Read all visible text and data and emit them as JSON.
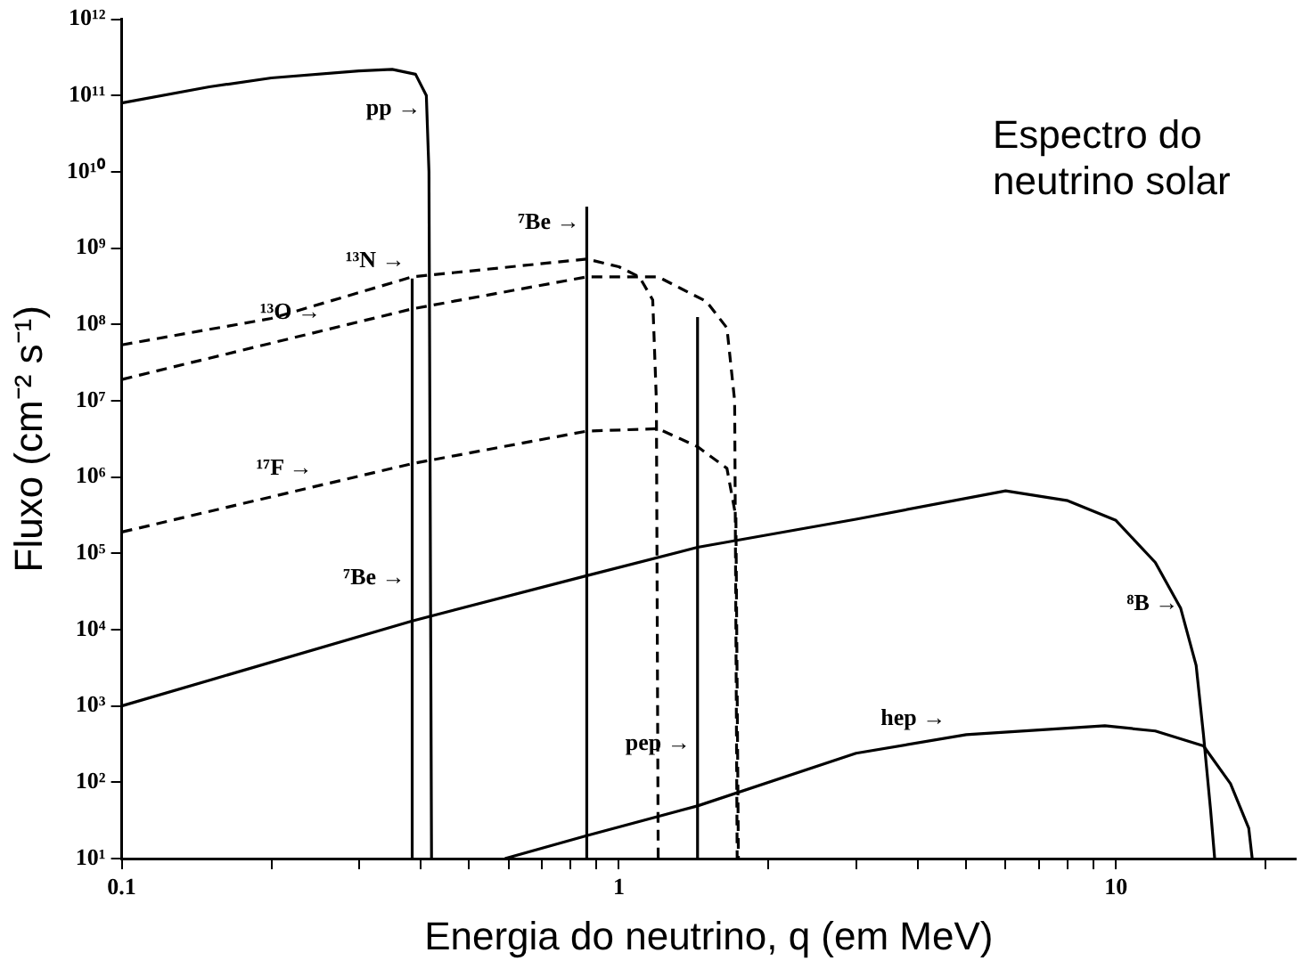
{
  "chart_data": {
    "type": "line",
    "title": "Espectro do neutrino solar",
    "xlabel": "Energia do neutrino, q (em MeV)",
    "ylabel": "Fluxo (cm⁻² s⁻¹)",
    "log": "xy",
    "grid": false,
    "legend": false,
    "marker": "none",
    "xlim": [
      0.1,
      23
    ],
    "ylim": [
      10,
      1000000000000
    ],
    "xticks": [
      {
        "value": 0.1,
        "label": "0.1"
      },
      {
        "value": 0.2,
        "label": null
      },
      {
        "value": 0.3,
        "label": null
      },
      {
        "value": 0.4,
        "label": null
      },
      {
        "value": 0.5,
        "label": null
      },
      {
        "value": 0.6,
        "label": null
      },
      {
        "value": 0.7,
        "label": null
      },
      {
        "value": 0.8,
        "label": null
      },
      {
        "value": 0.9,
        "label": null
      },
      {
        "value": 1,
        "label": "1"
      },
      {
        "value": 2,
        "label": null
      },
      {
        "value": 3,
        "label": null
      },
      {
        "value": 4,
        "label": null
      },
      {
        "value": 5,
        "label": null
      },
      {
        "value": 6,
        "label": null
      },
      {
        "value": 7,
        "label": null
      },
      {
        "value": 8,
        "label": null
      },
      {
        "value": 9,
        "label": null
      },
      {
        "value": 10,
        "label": "10"
      },
      {
        "value": 20,
        "label": null
      }
    ],
    "yticks": [
      {
        "value": 10,
        "label": "10¹"
      },
      {
        "value": 100,
        "label": "10²"
      },
      {
        "value": 1000,
        "label": "10³"
      },
      {
        "value": 10000,
        "label": "10⁴"
      },
      {
        "value": 100000,
        "label": "10⁵"
      },
      {
        "value": 1000000,
        "label": "10⁶"
      },
      {
        "value": 10000000,
        "label": "10⁷"
      },
      {
        "value": 100000000,
        "label": "10⁸"
      },
      {
        "value": 1000000000,
        "label": "10⁹"
      },
      {
        "value": 10000000000,
        "label": "10¹⁰"
      },
      {
        "value": 100000000000,
        "label": "10¹¹"
      },
      {
        "value": 1000000000000,
        "label": "10¹²"
      }
    ],
    "series": [
      {
        "type": "line",
        "color": "#000000",
        "line_style": "solid",
        "x": [
          0.1,
          0.15,
          0.2,
          0.3,
          0.35,
          0.39,
          0.41,
          0.415,
          0.42
        ],
        "values": [
          80000000000,
          130000000000,
          170000000000,
          210000000000,
          220000000000,
          190000000000,
          100000000000,
          10000000000,
          10
        ]
      },
      {
        "type": "line",
        "color": "#000000",
        "line_style": "dashed",
        "x": [
          0.1,
          0.2,
          0.384,
          0.862,
          1.0,
          1.1,
          1.17,
          1.19,
          1.2
        ],
        "values": [
          54000000,
          120000000,
          420000000,
          720000000,
          570000000,
          420000000,
          210000000,
          10000000,
          10
        ]
      },
      {
        "type": "line",
        "color": "#000000",
        "line_style": "dashed",
        "x": [
          0.1,
          0.384,
          0.862,
          1.2,
          1.5,
          1.65,
          1.71,
          1.73
        ],
        "values": [
          19000000,
          160000000,
          420000000,
          420000000,
          200000000,
          90000000,
          10000000,
          10
        ]
      },
      {
        "type": "line",
        "color": "#000000",
        "line_style": "dashed",
        "x": [
          0.1,
          0.384,
          0.862,
          1.2,
          1.44,
          1.65,
          1.72,
          1.74
        ],
        "values": [
          190000,
          1500000,
          4000000,
          4300000,
          2500000,
          1300000,
          300000,
          10
        ]
      },
      {
        "type": "line",
        "color": "#000000",
        "line_style": "solid",
        "x": [
          0.384,
          0.384
        ],
        "values": [
          10,
          400000000
        ]
      },
      {
        "type": "line",
        "color": "#000000",
        "line_style": "solid",
        "x": [
          0.862,
          0.862
        ],
        "values": [
          10,
          3500000000
        ]
      },
      {
        "type": "line",
        "color": "#000000",
        "line_style": "solid",
        "x": [
          1.44,
          1.44
        ],
        "values": [
          10,
          125000000
        ]
      },
      {
        "type": "line",
        "color": "#000000",
        "line_style": "solid",
        "x": [
          0.1,
          0.384,
          0.862,
          1.44,
          3,
          6,
          8,
          10,
          12,
          13.5,
          14.5,
          15,
          15.5,
          15.8
        ],
        "values": [
          1000,
          13000,
          51000,
          120000,
          280000,
          660000,
          490000,
          270000,
          76000,
          19000,
          3400,
          420,
          44,
          10
        ]
      },
      {
        "type": "line",
        "color": "#000000",
        "line_style": "solid",
        "x": [
          0.59,
          0.862,
          1.44,
          3,
          5,
          9.5,
          12,
          15,
          17,
          18.5,
          18.8
        ],
        "values": [
          10,
          20,
          49,
          240,
          420,
          550,
          470,
          300,
          96,
          25,
          10
        ]
      }
    ],
    "annotations": [
      {
        "text": "pp →",
        "x": 0.413,
        "y": 40000000000
      },
      {
        "text": "¹³N →",
        "x": 0.384,
        "y": 400000000
      },
      {
        "text": "¹³O →",
        "x": 0.26,
        "y": 85000000
      },
      {
        "text": "⁷Be →",
        "x": 0.862,
        "y": 1300000000
      },
      {
        "text": "¹⁷F →",
        "x": 0.25,
        "y": 780000
      },
      {
        "text": "⁷Be →",
        "x": 0.384,
        "y": 28000
      },
      {
        "text": "pep →",
        "x": 1.44,
        "y": 190
      },
      {
        "text": "hep →",
        "x": 4.7,
        "y": 400
      },
      {
        "text": "⁸B →",
        "x": 13.8,
        "y": 13000
      }
    ]
  }
}
